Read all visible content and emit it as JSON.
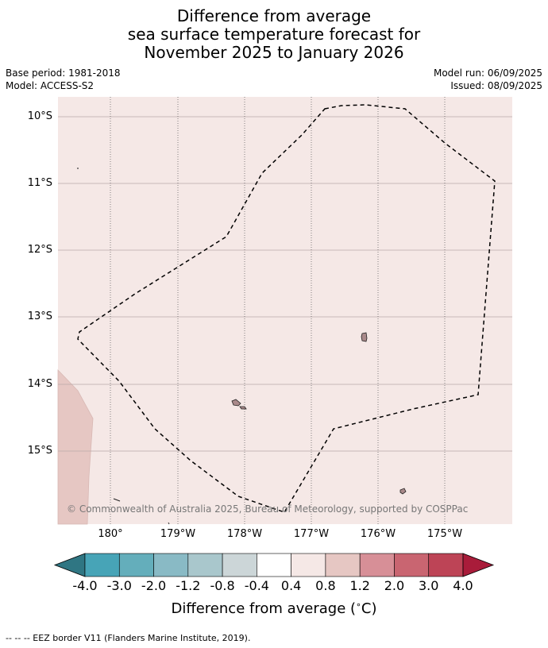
{
  "title": {
    "line1": "Difference from average",
    "line2": "sea surface temperature forecast for",
    "line3": "November 2025 to January 2026"
  },
  "meta": {
    "base_period": "Base period: 1981-2018",
    "model": "Model: ACCESS-S2",
    "model_run": "Model run: 06/09/2025",
    "issued": "Issued: 08/09/2025"
  },
  "map": {
    "lat_labels": [
      "10°S",
      "11°S",
      "12°S",
      "13°S",
      "14°S",
      "15°S"
    ],
    "lon_labels": [
      "180°",
      "179°W",
      "178°W",
      "177°W",
      "176°W",
      "175°W"
    ],
    "copyright": "© Commonwealth of Australia 2025, Bureau of Meteorology, supported by COSPPac",
    "background_color": "#f5e8e6",
    "warm_region_color": "#e6c7c3",
    "island_color": "#a9898a"
  },
  "colorbar": {
    "ticks": [
      "-4.0",
      "-3.0",
      "-2.0",
      "-1.2",
      "-0.8",
      "-0.4",
      "0.4",
      "0.8",
      "1.2",
      "2.0",
      "3.0",
      "4.0"
    ],
    "colors": [
      "#2f7683",
      "#47a4b7",
      "#64aebb",
      "#89bac5",
      "#a9c7cc",
      "#ccd6d8",
      "#ffffff",
      "#f5e8e6",
      "#e6c7c3",
      "#d78f97",
      "#c96571",
      "#bd4456",
      "#a91c3a"
    ],
    "label": "Difference from average ($^\\circ$C)",
    "label_text": "Difference from average (",
    "label_deg": "∘",
    "label_unit": "C)"
  },
  "footer": "--  --  -- EEZ border V11 (Flanders Marine Institute, 2019)."
}
